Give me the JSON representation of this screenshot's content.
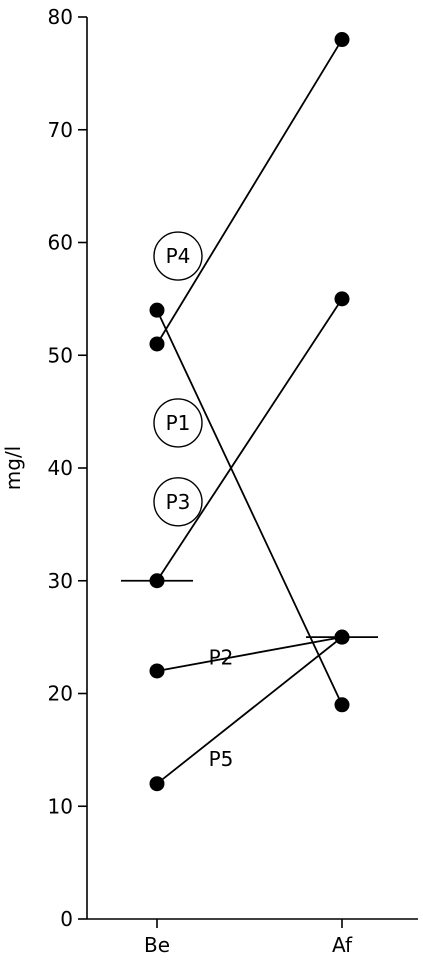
{
  "chart_data": {
    "type": "line",
    "ylabel": "mg/l",
    "xlabel": "",
    "ylim": [
      0,
      80
    ],
    "y_ticks": [
      0,
      10,
      20,
      30,
      40,
      50,
      60,
      70,
      80
    ],
    "y_tick_labels": [
      "0",
      "10",
      "20",
      "30",
      "40",
      "50",
      "60",
      "70",
      "80"
    ],
    "categories": [
      "Be",
      "Af"
    ],
    "series": [
      {
        "name": "P4",
        "values": [
          51,
          78
        ],
        "label_circled": true
      },
      {
        "name": "P1",
        "values": [
          54,
          19
        ],
        "label_circled": true
      },
      {
        "name": "P3",
        "values": [
          30,
          55
        ],
        "label_circled": true
      },
      {
        "name": "P2",
        "values": [
          22,
          25
        ],
        "label_circled": false
      },
      {
        "name": "P5",
        "values": [
          12,
          25
        ],
        "label_circled": false
      }
    ],
    "reference_marks": [
      {
        "category": "Be",
        "value": 30
      },
      {
        "category": "Af",
        "value": 25
      }
    ],
    "grid": false,
    "legend": "none"
  }
}
